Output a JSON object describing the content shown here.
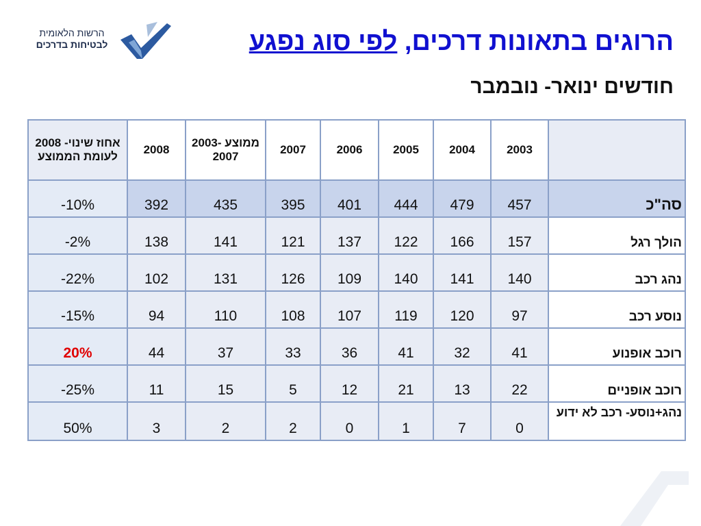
{
  "logo": {
    "line1": "הרשות הלאומית",
    "line2": "לבטיחות בדרכים"
  },
  "title": {
    "part1": "הרוגים בתאונות דרכים, ",
    "part2": "לפי סוג נפגע"
  },
  "subtitle": "חודשים ינואר- נובמבר",
  "table": {
    "headers": {
      "pct": "אחוז שינוי- 2008 לעומת הממוצע",
      "y2008": "2008",
      "avg": "ממוצע 2003-2007",
      "y2007": "2007",
      "y2006": "2006",
      "y2005": "2005",
      "y2004": "2004",
      "y2003": "2003",
      "label": ""
    },
    "rows": [
      {
        "label": "סה\"כ",
        "pct": "-10%",
        "y2008": "392",
        "avg": "435",
        "y2007": "395",
        "y2006": "401",
        "y2005": "444",
        "y2004": "479",
        "y2003": "457"
      },
      {
        "label": "הולך רגל",
        "pct": "-2%",
        "y2008": "138",
        "avg": "141",
        "y2007": "121",
        "y2006": "137",
        "y2005": "122",
        "y2004": "166",
        "y2003": "157"
      },
      {
        "label": "נהג רכב",
        "pct": "-22%",
        "y2008": "102",
        "avg": "131",
        "y2007": "126",
        "y2006": "109",
        "y2005": "140",
        "y2004": "141",
        "y2003": "140"
      },
      {
        "label": "נוסע רכב",
        "pct": "-15%",
        "y2008": "94",
        "avg": "110",
        "y2007": "108",
        "y2006": "107",
        "y2005": "119",
        "y2004": "120",
        "y2003": "97"
      },
      {
        "label": "רוכב אופנוע",
        "pct": "20%",
        "y2008": "44",
        "avg": "37",
        "y2007": "33",
        "y2006": "36",
        "y2005": "41",
        "y2004": "32",
        "y2003": "41"
      },
      {
        "label": "רוכב אופניים",
        "pct": "-25%",
        "y2008": "11",
        "avg": "15",
        "y2007": "5",
        "y2006": "12",
        "y2005": "21",
        "y2004": "13",
        "y2003": "22"
      },
      {
        "label": "נהג+נוסע- רכב לא ידוע",
        "pct": "50%",
        "y2008": "3",
        "avg": "2",
        "y2007": "2",
        "y2006": "0",
        "y2005": "1",
        "y2004": "7",
        "y2003": "0"
      }
    ]
  },
  "colors": {
    "title": "#1010d0",
    "highlight": "#e00000",
    "border": "#8aa0c8",
    "total_row": "#c8d4ec"
  }
}
